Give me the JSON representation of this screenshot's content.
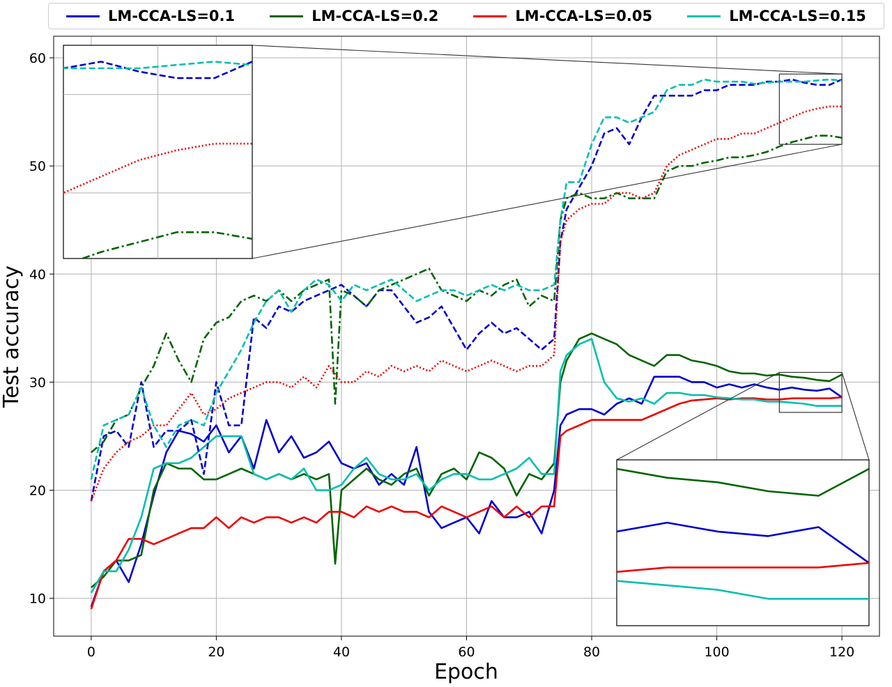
{
  "chart_data": {
    "type": "line",
    "xlabel": "Epoch",
    "ylabel": "Test accuracy",
    "xlim": [
      -6,
      126
    ],
    "ylim": [
      6.5,
      62
    ],
    "xticks": [
      "0",
      "20",
      "40",
      "60",
      "80",
      "100",
      "120"
    ],
    "yticks": [
      "10",
      "20",
      "30",
      "40",
      "50",
      "60"
    ],
    "grid": true,
    "legend_position": "top",
    "series": [
      {
        "name": "LM-CCA-LS=0.1",
        "color": "#0000cc"
      },
      {
        "name": "LM-CCA-LS=0.2",
        "color": "#006400"
      },
      {
        "name": "LM-CCA-LS=0.05",
        "color": "#ee0000"
      },
      {
        "name": "LM-CCA-LS=0.15",
        "color": "#00bfae"
      }
    ],
    "lines": [
      {
        "series": "LM-CCA-LS=0.1",
        "split": "solid",
        "style": "solid",
        "x": [
          0,
          2,
          4,
          6,
          8,
          10,
          12,
          14,
          16,
          18,
          20,
          22,
          24,
          26,
          28,
          30,
          32,
          34,
          36,
          38,
          40,
          42,
          44,
          46,
          48,
          50,
          52,
          54,
          56,
          58,
          60,
          62,
          64,
          66,
          68,
          70,
          72,
          74,
          75,
          76,
          78,
          80,
          82,
          84,
          86,
          88,
          90,
          92,
          94,
          96,
          98,
          100,
          102,
          104,
          106,
          108,
          110,
          112,
          114,
          116,
          118,
          120
        ],
        "y": [
          9.2,
          12.5,
          13.5,
          11.5,
          15.0,
          19.5,
          23.5,
          25.5,
          25.2,
          24.5,
          26.0,
          23.5,
          25.0,
          22.0,
          26.5,
          23.5,
          25.0,
          23.0,
          23.5,
          24.5,
          22.5,
          22.0,
          22.5,
          20.5,
          21.5,
          20.5,
          24.0,
          18.0,
          16.5,
          17.0,
          17.5,
          16.0,
          19.0,
          17.5,
          17.5,
          18.0,
          16.0,
          20.0,
          26.0,
          27.0,
          27.5,
          27.5,
          27.0,
          28.0,
          28.5,
          28.0,
          30.5,
          30.5,
          30.5,
          30.0,
          30.0,
          29.5,
          29.8,
          29.5,
          29.8,
          29.5,
          29.3,
          29.5,
          29.3,
          29.2,
          29.4,
          28.6
        ]
      },
      {
        "series": "LM-CCA-LS=0.2",
        "split": "solid",
        "style": "solid",
        "x": [
          0,
          2,
          4,
          6,
          8,
          10,
          12,
          14,
          16,
          18,
          20,
          22,
          24,
          26,
          28,
          30,
          32,
          34,
          36,
          38,
          39,
          40,
          42,
          44,
          46,
          48,
          50,
          52,
          54,
          56,
          58,
          60,
          62,
          64,
          66,
          68,
          70,
          72,
          74,
          75,
          76,
          78,
          80,
          82,
          84,
          86,
          88,
          90,
          92,
          94,
          96,
          98,
          100,
          102,
          104,
          106,
          108,
          110,
          112,
          114,
          116,
          118,
          120
        ],
        "y": [
          11.0,
          12.0,
          13.5,
          13.5,
          14.0,
          20.0,
          22.5,
          22.0,
          22.0,
          21.0,
          21.0,
          21.5,
          22.0,
          21.5,
          21.0,
          21.5,
          21.0,
          21.5,
          21.0,
          21.5,
          13.2,
          20.0,
          21.0,
          22.0,
          21.0,
          20.5,
          21.5,
          22.0,
          19.5,
          21.5,
          22.0,
          21.0,
          23.5,
          23.0,
          22.0,
          19.5,
          21.5,
          21.0,
          22.5,
          30.0,
          32.0,
          34.0,
          34.5,
          34.0,
          33.5,
          32.5,
          32.0,
          31.5,
          32.5,
          32.5,
          32.0,
          31.8,
          31.5,
          31.0,
          30.8,
          30.8,
          30.6,
          30.7,
          30.5,
          30.4,
          30.2,
          30.1,
          30.7
        ]
      },
      {
        "series": "LM-CCA-LS=0.05",
        "split": "solid",
        "style": "solid",
        "x": [
          0,
          2,
          4,
          6,
          8,
          10,
          12,
          14,
          16,
          18,
          20,
          22,
          24,
          26,
          28,
          30,
          32,
          34,
          36,
          38,
          40,
          42,
          44,
          46,
          48,
          50,
          52,
          54,
          56,
          58,
          60,
          62,
          64,
          66,
          68,
          70,
          72,
          74,
          75,
          76,
          78,
          80,
          82,
          84,
          86,
          88,
          90,
          92,
          94,
          96,
          98,
          100,
          102,
          104,
          106,
          108,
          110,
          112,
          114,
          116,
          118,
          120
        ],
        "y": [
          9.0,
          12.5,
          13.5,
          15.5,
          15.5,
          15.0,
          15.5,
          16.0,
          16.5,
          16.5,
          17.5,
          16.5,
          17.5,
          17.0,
          17.5,
          17.5,
          17.0,
          17.5,
          17.0,
          18.0,
          18.0,
          17.5,
          18.5,
          18.0,
          18.5,
          18.0,
          18.0,
          17.5,
          18.5,
          18.0,
          17.5,
          18.0,
          18.5,
          17.5,
          18.5,
          17.5,
          18.5,
          18.5,
          25.0,
          25.5,
          26.0,
          26.5,
          26.5,
          26.5,
          26.5,
          26.5,
          27.0,
          27.5,
          28.0,
          28.3,
          28.4,
          28.5,
          28.4,
          28.5,
          28.5,
          28.4,
          28.4,
          28.5,
          28.5,
          28.5,
          28.5,
          28.6
        ]
      },
      {
        "series": "LM-CCA-LS=0.15",
        "split": "solid",
        "style": "solid",
        "x": [
          0,
          2,
          4,
          6,
          8,
          10,
          12,
          14,
          16,
          18,
          20,
          22,
          24,
          26,
          28,
          30,
          32,
          34,
          36,
          38,
          40,
          42,
          44,
          46,
          48,
          50,
          52,
          54,
          56,
          58,
          60,
          62,
          64,
          66,
          68,
          70,
          72,
          74,
          75,
          76,
          78,
          80,
          82,
          84,
          86,
          88,
          90,
          92,
          94,
          96,
          98,
          100,
          102,
          104,
          106,
          108,
          110,
          112,
          114,
          116,
          118,
          120
        ],
        "y": [
          10.5,
          12.5,
          12.5,
          14.5,
          17.5,
          22.0,
          22.5,
          22.5,
          23.0,
          24.0,
          25.0,
          25.0,
          25.0,
          21.5,
          21.0,
          21.5,
          21.0,
          22.0,
          20.0,
          20.0,
          20.5,
          22.0,
          23.0,
          21.5,
          21.0,
          21.0,
          21.5,
          20.0,
          21.0,
          21.5,
          21.5,
          21.0,
          21.0,
          21.5,
          22.0,
          23.0,
          21.5,
          21.5,
          31.0,
          32.5,
          33.5,
          34.0,
          30.0,
          28.5,
          28.2,
          28.5,
          28.0,
          29.0,
          29.0,
          28.8,
          28.8,
          28.6,
          28.5,
          28.4,
          28.4,
          28.2,
          28.2,
          28.1,
          28.0,
          27.8,
          27.8,
          27.8
        ]
      },
      {
        "series": "LM-CCA-LS=0.1",
        "split": "train",
        "style": "dashed",
        "x": [
          0,
          2,
          4,
          6,
          8,
          10,
          12,
          14,
          16,
          18,
          20,
          22,
          24,
          26,
          28,
          30,
          32,
          34,
          36,
          38,
          40,
          42,
          44,
          46,
          48,
          50,
          52,
          54,
          56,
          58,
          60,
          62,
          64,
          66,
          68,
          70,
          72,
          74,
          75,
          76,
          78,
          80,
          82,
          84,
          86,
          88,
          90,
          92,
          94,
          96,
          98,
          100,
          102,
          104,
          106,
          108,
          110,
          112,
          114,
          116,
          118,
          120
        ],
        "y": [
          19.0,
          25.0,
          25.5,
          24.0,
          30.0,
          24.0,
          25.5,
          25.5,
          26.5,
          21.5,
          30.0,
          26.0,
          26.0,
          36.0,
          35.0,
          37.0,
          36.5,
          37.5,
          38.0,
          38.5,
          39.0,
          38.0,
          37.0,
          38.5,
          38.5,
          37.0,
          35.5,
          36.0,
          37.0,
          35.0,
          33.0,
          34.5,
          35.5,
          34.5,
          35.0,
          34.0,
          33.0,
          34.0,
          43.0,
          46.0,
          48.0,
          50.0,
          53.0,
          53.5,
          52.0,
          54.5,
          56.5,
          56.5,
          56.5,
          56.5,
          57.0,
          57.0,
          57.5,
          57.5,
          57.5,
          57.8,
          57.8,
          58.0,
          57.7,
          57.5,
          57.5,
          58.0
        ]
      },
      {
        "series": "LM-CCA-LS=0.2",
        "split": "train",
        "style": "dashdot",
        "x": [
          0,
          2,
          4,
          6,
          8,
          10,
          12,
          14,
          16,
          18,
          20,
          22,
          24,
          26,
          28,
          30,
          32,
          34,
          36,
          38,
          39,
          40,
          42,
          44,
          46,
          48,
          50,
          52,
          54,
          56,
          58,
          60,
          62,
          64,
          66,
          68,
          70,
          72,
          74,
          75,
          76,
          78,
          80,
          82,
          84,
          86,
          88,
          90,
          92,
          94,
          96,
          98,
          100,
          102,
          104,
          106,
          108,
          110,
          112,
          114,
          116,
          118,
          120
        ],
        "y": [
          23.5,
          24.5,
          26.5,
          27.0,
          29.5,
          31.5,
          34.5,
          32.0,
          30.0,
          34.0,
          35.5,
          36.0,
          37.5,
          38.0,
          37.5,
          38.5,
          37.5,
          38.5,
          39.0,
          39.5,
          28.0,
          38.5,
          38.0,
          37.0,
          38.5,
          39.0,
          39.5,
          40.0,
          40.5,
          38.5,
          38.0,
          37.5,
          38.5,
          38.0,
          39.0,
          39.5,
          37.0,
          38.0,
          37.5,
          45.0,
          47.0,
          47.5,
          47.0,
          47.0,
          47.5,
          47.0,
          47.0,
          47.0,
          49.5,
          50.0,
          50.0,
          50.3,
          50.5,
          50.8,
          50.8,
          51.0,
          51.3,
          51.8,
          52.2,
          52.5,
          52.8,
          52.8,
          52.6
        ]
      },
      {
        "series": "LM-CCA-LS=0.05",
        "split": "train",
        "style": "dotted",
        "x": [
          0,
          2,
          4,
          6,
          8,
          10,
          12,
          14,
          16,
          18,
          20,
          22,
          24,
          26,
          28,
          30,
          32,
          34,
          36,
          38,
          40,
          42,
          44,
          46,
          48,
          50,
          52,
          54,
          56,
          58,
          60,
          62,
          64,
          66,
          68,
          70,
          72,
          74,
          75,
          76,
          78,
          80,
          82,
          84,
          86,
          88,
          90,
          92,
          94,
          96,
          98,
          100,
          102,
          104,
          106,
          108,
          110,
          112,
          114,
          116,
          118,
          120
        ],
        "y": [
          19.0,
          22.0,
          23.5,
          24.5,
          25.0,
          26.0,
          26.0,
          27.5,
          29.0,
          27.0,
          27.5,
          28.5,
          29.0,
          29.5,
          30.0,
          30.0,
          29.5,
          30.5,
          29.5,
          31.5,
          30.0,
          30.0,
          31.0,
          30.5,
          31.5,
          31.0,
          31.5,
          31.0,
          32.0,
          31.5,
          31.0,
          31.5,
          32.0,
          31.5,
          31.0,
          31.5,
          31.5,
          32.5,
          43.0,
          45.0,
          46.0,
          46.5,
          46.5,
          47.5,
          47.5,
          47.0,
          47.5,
          50.0,
          51.0,
          51.5,
          52.0,
          52.5,
          52.5,
          53.0,
          53.0,
          53.5,
          54.0,
          54.5,
          55.0,
          55.3,
          55.5,
          55.5
        ]
      },
      {
        "series": "LM-CCA-LS=0.15",
        "split": "train",
        "style": "dashed",
        "x": [
          0,
          2,
          4,
          6,
          8,
          10,
          12,
          14,
          16,
          18,
          20,
          22,
          24,
          26,
          28,
          30,
          32,
          34,
          36,
          38,
          40,
          42,
          44,
          46,
          48,
          50,
          52,
          54,
          56,
          58,
          60,
          62,
          64,
          66,
          68,
          70,
          72,
          74,
          75,
          76,
          78,
          80,
          82,
          84,
          86,
          88,
          90,
          92,
          94,
          96,
          98,
          100,
          102,
          104,
          106,
          108,
          110,
          112,
          114,
          116,
          118,
          120
        ],
        "y": [
          21.0,
          26.0,
          26.5,
          27.0,
          29.5,
          26.0,
          24.0,
          26.0,
          26.5,
          26.0,
          29.0,
          31.0,
          33.0,
          35.5,
          37.5,
          38.5,
          36.5,
          38.5,
          39.5,
          39.0,
          37.5,
          39.0,
          38.5,
          39.0,
          39.5,
          38.5,
          37.5,
          38.0,
          38.5,
          38.5,
          38.0,
          38.5,
          39.0,
          38.5,
          39.0,
          38.5,
          38.5,
          39.0,
          45.0,
          48.5,
          48.5,
          52.0,
          54.5,
          54.5,
          54.0,
          54.5,
          55.0,
          57.0,
          57.5,
          57.5,
          58.0,
          57.8,
          57.8,
          57.8,
          57.6,
          57.7,
          57.8,
          57.8,
          57.8,
          57.9,
          58.0,
          57.9
        ]
      }
    ]
  }
}
